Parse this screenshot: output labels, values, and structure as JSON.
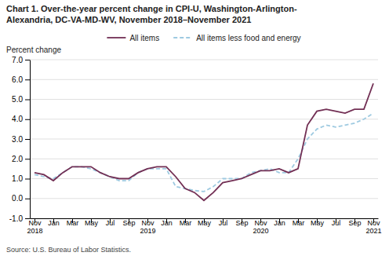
{
  "chart_data": {
    "type": "line",
    "title": [
      "Chart 1. Over-the-year percent change in CPI-U, Washington-Arlington-",
      "Alexandria, DC-VA-MD-WV, November 2018–November 2021"
    ],
    "ylabel": "Percent change",
    "source": "Source: U.S. Bureau of Labor Statistics.",
    "categories": [
      "Nov\n2018",
      null,
      "Jan",
      null,
      "Mar",
      null,
      "May",
      null,
      "Jul",
      null,
      "Sep",
      null,
      "Nov\n2019",
      null,
      "Jan",
      null,
      "Mar",
      null,
      "May",
      null,
      "Jul",
      null,
      "Sep",
      null,
      "Nov\n2020",
      null,
      "Jan",
      null,
      "Mar",
      null,
      "May",
      null,
      "Jul",
      null,
      "Sep",
      null,
      "Nov\n2021"
    ],
    "series": [
      {
        "name": "All items",
        "color": "#722F54",
        "line_style": "solid",
        "values": [
          1.3,
          1.2,
          0.9,
          1.3,
          1.6,
          1.6,
          1.6,
          1.3,
          1.1,
          1.0,
          1.0,
          1.3,
          1.5,
          1.6,
          1.6,
          1.1,
          0.5,
          0.3,
          -0.1,
          0.3,
          0.8,
          0.9,
          1.0,
          1.2,
          1.4,
          1.4,
          1.5,
          1.3,
          1.5,
          3.7,
          4.4,
          4.5,
          4.4,
          4.3,
          4.5,
          4.5,
          5.8
        ]
      },
      {
        "name": "All items less food and energy",
        "color": "#9ECAE1",
        "line_style": "dashed",
        "values": [
          1.2,
          1.1,
          1.0,
          1.3,
          1.6,
          1.6,
          1.5,
          1.3,
          1.1,
          0.9,
          0.9,
          1.3,
          1.5,
          1.5,
          1.5,
          0.6,
          0.5,
          0.4,
          0.35,
          0.6,
          1.0,
          1.0,
          1.0,
          1.3,
          1.4,
          1.5,
          1.3,
          1.3,
          2.0,
          3.0,
          3.5,
          3.7,
          3.6,
          3.7,
          3.8,
          4.0,
          4.3
        ]
      }
    ],
    "ylim": [
      -1.0,
      7.0
    ],
    "yticks": [
      {
        "value": -1.0,
        "label": "-1.0"
      },
      {
        "value": 0.0,
        "label": "0.0"
      },
      {
        "value": 1.0,
        "label": "1.0"
      },
      {
        "value": 2.0,
        "label": "2.0"
      },
      {
        "value": 3.0,
        "label": "3.0"
      },
      {
        "value": 4.0,
        "label": "4.0"
      },
      {
        "value": 5.0,
        "label": "5.0"
      },
      {
        "value": 6.0,
        "label": "6.0"
      },
      {
        "value": 7.0,
        "label": "7.0"
      }
    ],
    "grid": true,
    "legend": "top"
  }
}
